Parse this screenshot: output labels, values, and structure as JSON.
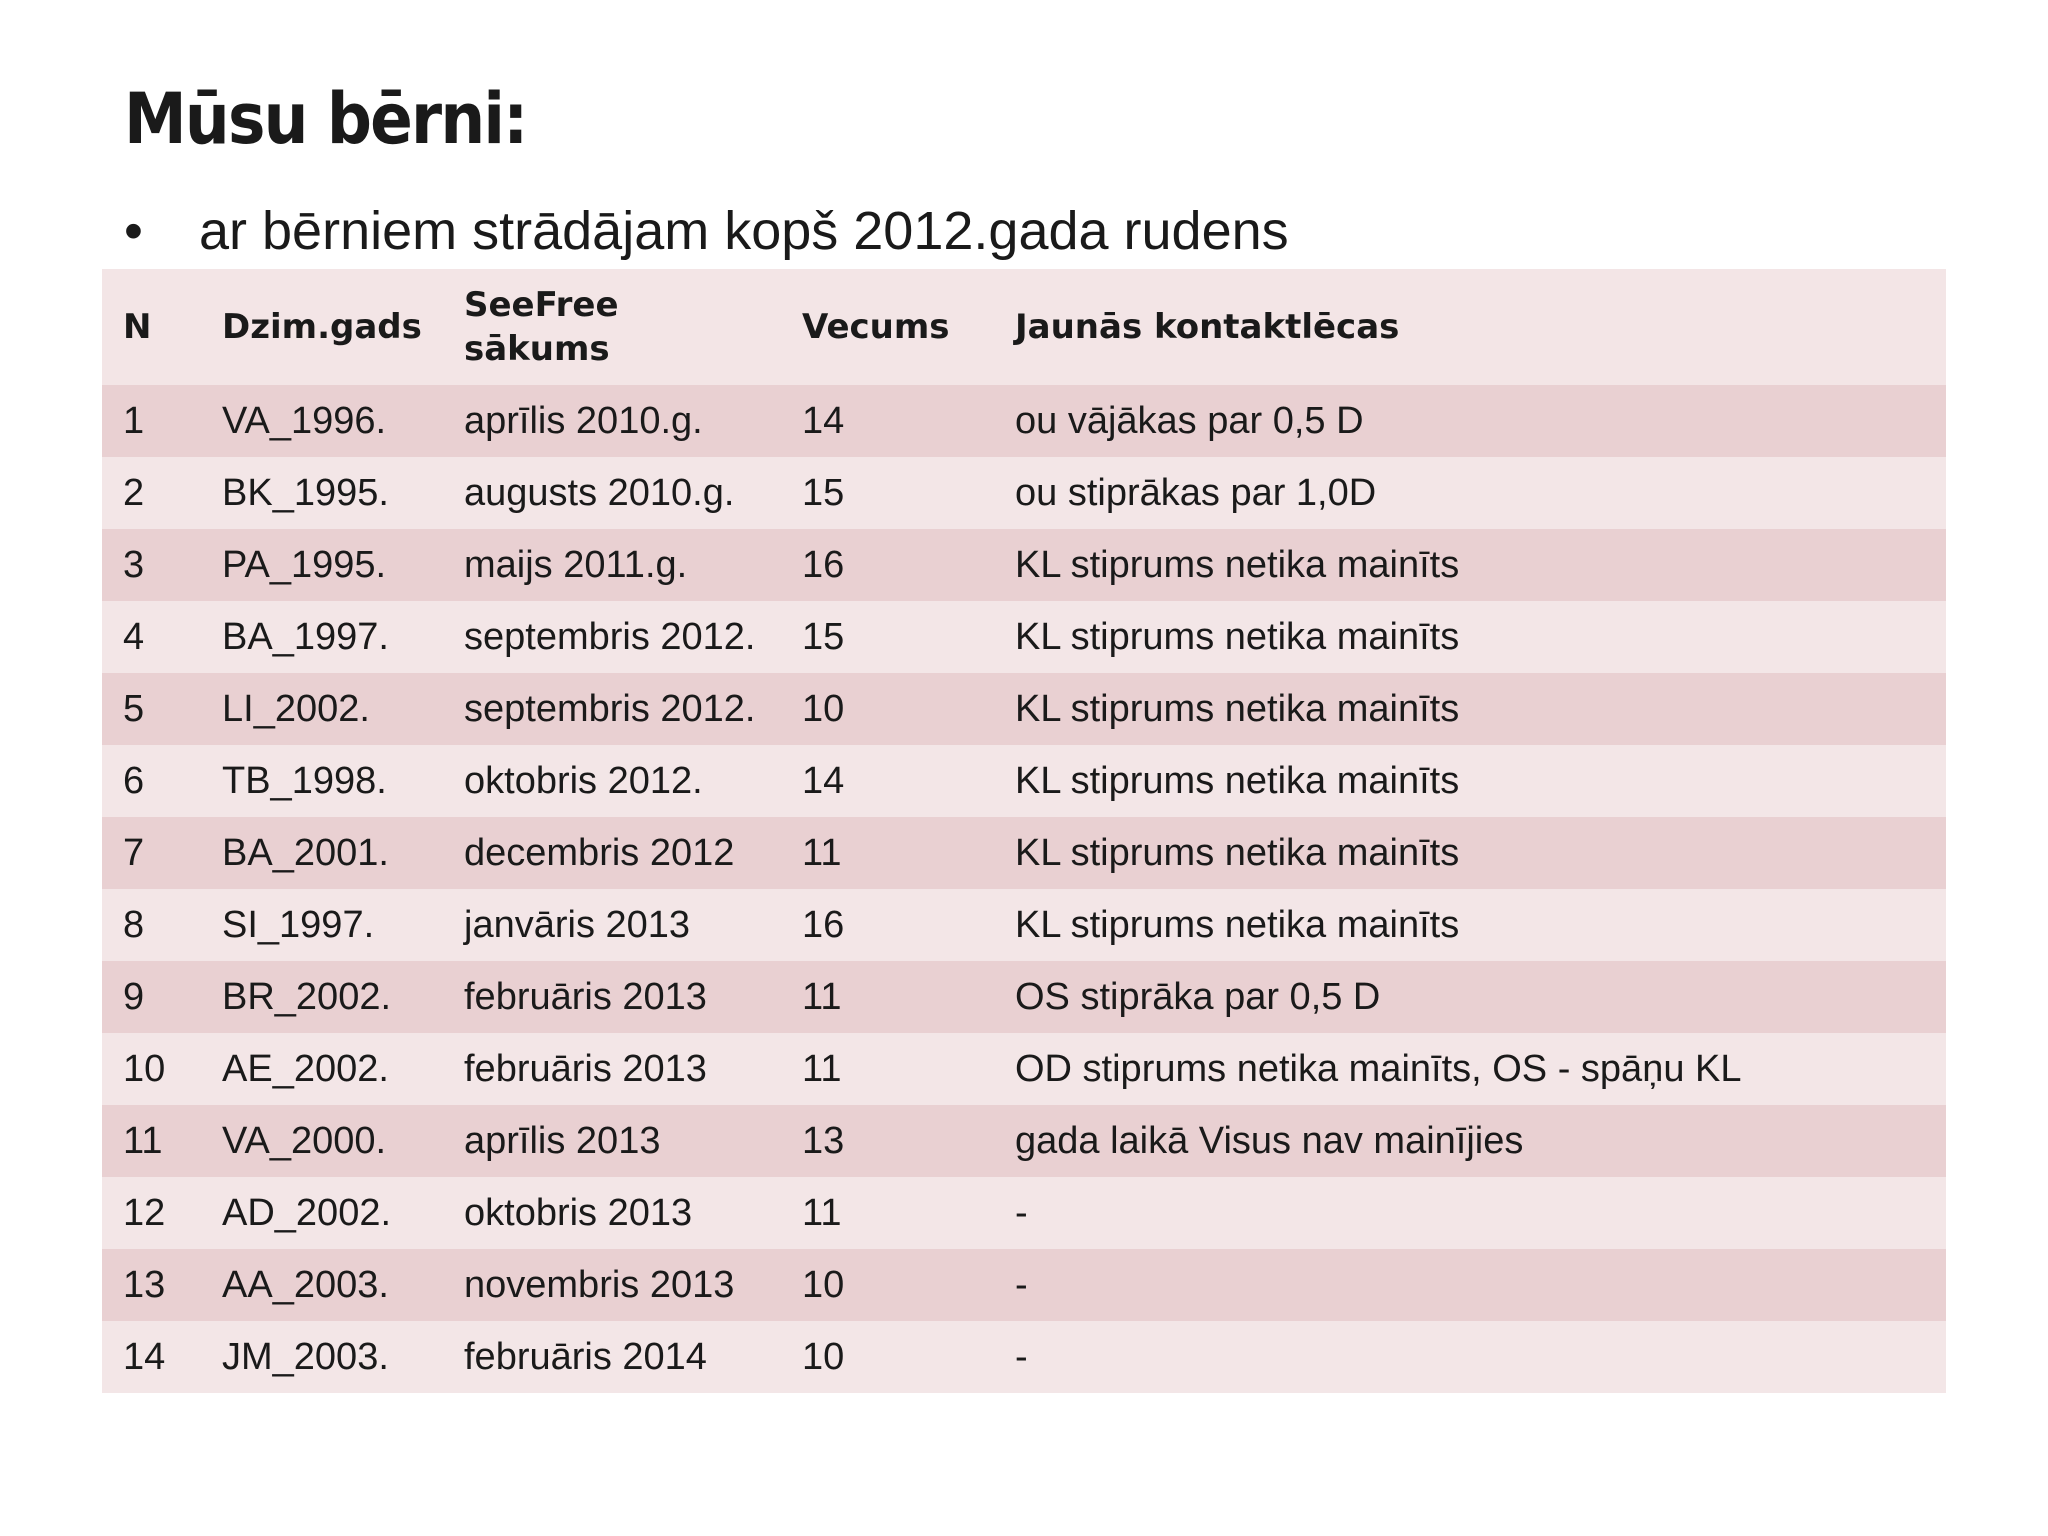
{
  "header": {
    "title": "Mūsu bērni:"
  },
  "bullets": [
    "ar bērniem strādājam kopš 2012.gada rudens"
  ],
  "table": {
    "columns": [
      "N",
      "Dzim.gads",
      "SeeFree sākums",
      "Vecums",
      "Jaunās kontaktlēcas"
    ],
    "rows": [
      [
        "1",
        "VA_1996.",
        "aprīlis 2010.g.",
        "14",
        "ou vājākas par 0,5 D"
      ],
      [
        "2",
        "BK_1995.",
        "augusts 2010.g.",
        "15",
        "ou stiprākas par 1,0D"
      ],
      [
        "3",
        "PA_1995.",
        "maijs 2011.g.",
        "16",
        "KL stiprums netika mainīts"
      ],
      [
        "4",
        "BA_1997.",
        "septembris 2012.",
        "15",
        "KL stiprums netika mainīts"
      ],
      [
        "5",
        "LI_2002.",
        "septembris 2012.",
        "10",
        "KL stiprums netika mainīts"
      ],
      [
        "6",
        "TB_1998.",
        "oktobris 2012.",
        "14",
        "KL stiprums netika mainīts"
      ],
      [
        "7",
        "BA_2001.",
        "decembris 2012",
        "11",
        "KL stiprums netika mainīts"
      ],
      [
        "8",
        "SI_1997.",
        "janvāris 2013",
        "16",
        "KL stiprums netika mainīts"
      ],
      [
        "9",
        "BR_2002.",
        "februāris 2013",
        "11",
        "OS stiprāka par 0,5 D"
      ],
      [
        "10",
        "AE_2002.",
        "februāris 2013",
        "11",
        "OD stiprums netika mainīts, OS - spāņu KL"
      ],
      [
        "11",
        "VA_2000.",
        "aprīlis 2013",
        "13",
        "gada laikā Visus nav mainījies"
      ],
      [
        "12",
        "AD_2002.",
        "oktobris 2013",
        "11",
        "-"
      ],
      [
        "13",
        "AA_2003.",
        "novembris 2013",
        "10",
        "-"
      ],
      [
        "14",
        "JM_2003.",
        "februāris 2014",
        "10",
        "-"
      ]
    ]
  }
}
